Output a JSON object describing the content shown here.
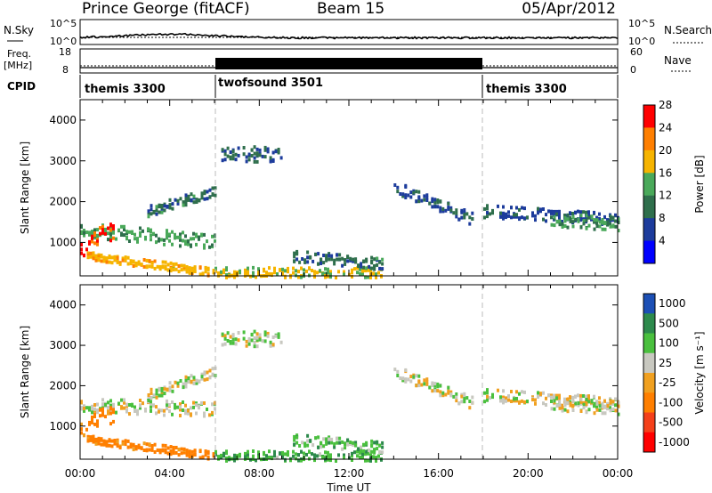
{
  "header": {
    "station": "Prince George (fitACF)",
    "beam": "Beam 15",
    "date": "05/Apr/2012"
  },
  "top_panels": {
    "nsky_label": "N.Sky",
    "nsearch_label": "N.Search",
    "nsky_ticks": [
      "10^5",
      "10^0"
    ],
    "nsearch_ticks": [
      "10^5",
      "10^0"
    ],
    "freq_label": "Freq.",
    "freq_unit": "[MHz]",
    "freq_ticks": [
      "18",
      "8"
    ],
    "nave_label": "Nave",
    "nave_ticks": [
      "60",
      "0"
    ],
    "cpid_label": "CPID",
    "cpid_segments": [
      {
        "label": "themis 3300",
        "start_hour": 0,
        "end_hour": 6
      },
      {
        "label": "twofsound 3501",
        "start_hour": 6,
        "end_hour": 18
      },
      {
        "label": "themis 3300",
        "start_hour": 18,
        "end_hour": 24
      }
    ]
  },
  "axes": {
    "ylabel": "Slant Range [km]",
    "xlabel": "Time UT",
    "y_ticks": [
      "1000",
      "2000",
      "3000",
      "4000"
    ],
    "x_ticks": [
      "00:00",
      "04:00",
      "08:00",
      "12:00",
      "16:00",
      "20:00",
      "00:00"
    ]
  },
  "power_scale": {
    "label": "Power [dB]",
    "ticks": [
      "4",
      "8",
      "12",
      "16",
      "20",
      "24",
      "28"
    ],
    "colors": [
      "#0000ff",
      "#1d3c9c",
      "#2f6f4c",
      "#4aa95a",
      "#f6b400",
      "#ff7f00",
      "#ff0000"
    ]
  },
  "velocity_scale": {
    "label": "Velocity [m s⁻¹]",
    "ticks": [
      "1000",
      "500",
      "100",
      "25",
      "-25",
      "-100",
      "-500",
      "-1000"
    ],
    "colors": [
      "#1c4fb5",
      "#2d8a4c",
      "#4ac03e",
      "#c8c8c0",
      "#f0a020",
      "#ff7f00",
      "#f4401a",
      "#ff0000"
    ]
  },
  "chart_data": [
    {
      "type": "heatmap",
      "title": "Power",
      "x_range_hours": [
        0,
        24
      ],
      "ylim": [
        180,
        4500
      ],
      "colorbar_range": [
        0,
        30
      ],
      "echo_regions": [
        {
          "t_start": 0.0,
          "t_end": 6.0,
          "range_start": 1350,
          "range_end": 1050,
          "width": 350,
          "power": 14
        },
        {
          "t_start": 0.0,
          "t_end": 1.5,
          "range_start": 900,
          "range_end": 1350,
          "width": 500,
          "power": 26
        },
        {
          "t_start": 0.3,
          "t_end": 6.0,
          "range_start": 700,
          "range_end": 300,
          "width": 200,
          "power": 20
        },
        {
          "t_start": 3.0,
          "t_end": 6.0,
          "range_start": 1800,
          "range_end": 2300,
          "width": 250,
          "power": 10
        },
        {
          "t_start": 6.3,
          "t_end": 9.0,
          "range_start": 3200,
          "range_end": 3200,
          "width": 400,
          "power": 8
        },
        {
          "t_start": 6.0,
          "t_end": 13.5,
          "range_start": 300,
          "range_end": 300,
          "width": 250,
          "power": 18
        },
        {
          "t_start": 9.5,
          "t_end": 13.5,
          "range_start": 700,
          "range_end": 500,
          "width": 300,
          "power": 10
        },
        {
          "t_start": 14.0,
          "t_end": 17.5,
          "range_start": 2400,
          "range_end": 1600,
          "width": 300,
          "power": 8
        },
        {
          "t_start": 18.0,
          "t_end": 24.0,
          "range_start": 1800,
          "range_end": 1600,
          "width": 300,
          "power": 8
        },
        {
          "t_start": 21.0,
          "t_end": 24.0,
          "range_start": 1600,
          "range_end": 1500,
          "width": 350,
          "power": 14
        }
      ]
    },
    {
      "type": "heatmap",
      "title": "Velocity",
      "x_range_hours": [
        0,
        24
      ],
      "ylim": [
        180,
        4500
      ],
      "colorbar_range": [
        -1000,
        1000
      ],
      "echo_regions": [
        {
          "t_start": 0.0,
          "t_end": 6.0,
          "range_start": 1550,
          "range_end": 1450,
          "width": 350,
          "velocity": 0
        },
        {
          "t_start": 0.0,
          "t_end": 1.5,
          "range_start": 1000,
          "range_end": 1350,
          "width": 500,
          "velocity": -150
        },
        {
          "t_start": 0.3,
          "t_end": 6.0,
          "range_start": 700,
          "range_end": 300,
          "width": 200,
          "velocity": -150
        },
        {
          "t_start": 3.0,
          "t_end": 6.0,
          "range_start": 1800,
          "range_end": 2400,
          "width": 250,
          "velocity": 0
        },
        {
          "t_start": 6.3,
          "t_end": 9.0,
          "range_start": 3200,
          "range_end": 3200,
          "width": 400,
          "velocity": 0
        },
        {
          "t_start": 6.0,
          "t_end": 13.5,
          "range_start": 300,
          "range_end": 300,
          "width": 250,
          "velocity": 80
        },
        {
          "t_start": 9.5,
          "t_end": 13.5,
          "range_start": 700,
          "range_end": 500,
          "width": 300,
          "velocity": 60
        },
        {
          "t_start": 14.0,
          "t_end": 17.5,
          "range_start": 2400,
          "range_end": 1600,
          "width": 300,
          "velocity": 0
        },
        {
          "t_start": 18.0,
          "t_end": 24.0,
          "range_start": 1800,
          "range_end": 1600,
          "width": 300,
          "velocity": 0
        },
        {
          "t_start": 21.0,
          "t_end": 24.0,
          "range_start": 1600,
          "range_end": 1500,
          "width": 350,
          "velocity": 0
        }
      ]
    }
  ]
}
